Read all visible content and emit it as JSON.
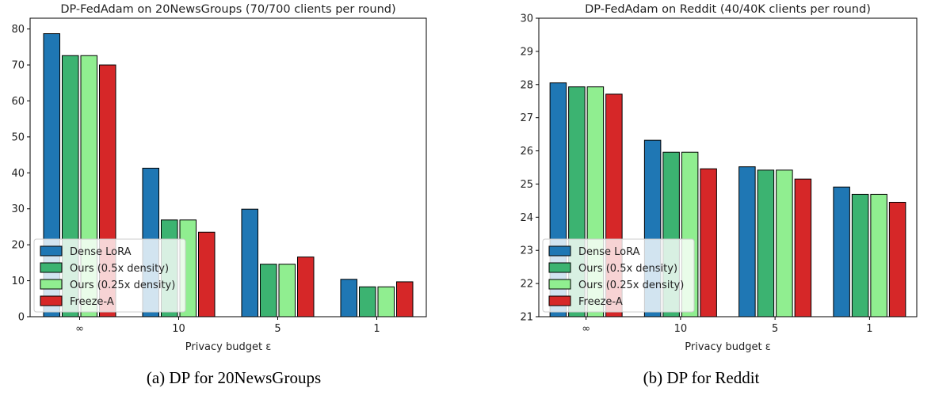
{
  "chart_data": [
    {
      "type": "bar",
      "title": "DP-FedAdam on 20NewsGroups (70/700 clients per round)",
      "xlabel": "Privacy budget ε",
      "ylabel": "",
      "categories": [
        "∞",
        "10",
        "5",
        "1"
      ],
      "ylim": [
        0,
        83
      ],
      "yticks": [
        0,
        10,
        20,
        30,
        40,
        50,
        60,
        70,
        80
      ],
      "legend_position": "lower-left",
      "grid": false,
      "series": [
        {
          "name": "Dense LoRA",
          "color": "#1f77b4",
          "values": [
            78.7,
            41.3,
            29.9,
            10.4
          ]
        },
        {
          "name": "Ours (0.5x density)",
          "color": "#3cb371",
          "values": [
            72.6,
            26.9,
            14.6,
            8.3
          ]
        },
        {
          "name": "Ours (0.25x density)",
          "color": "#90ee90",
          "values": [
            72.6,
            26.9,
            14.6,
            8.3
          ]
        },
        {
          "name": "Freeze-A",
          "color": "#d62728",
          "values": [
            70.0,
            23.5,
            16.6,
            9.7
          ]
        }
      ]
    },
    {
      "type": "bar",
      "title": "DP-FedAdam on Reddit (40/40K clients per round)",
      "xlabel": "Privacy budget ε",
      "ylabel": "",
      "categories": [
        "∞",
        "10",
        "5",
        "1"
      ],
      "ylim": [
        21,
        30
      ],
      "yticks": [
        21,
        22,
        23,
        24,
        25,
        26,
        27,
        28,
        29,
        30
      ],
      "legend_position": "lower-left",
      "grid": false,
      "series": [
        {
          "name": "Dense LoRA",
          "color": "#1f77b4",
          "values": [
            28.05,
            26.32,
            25.52,
            24.91
          ]
        },
        {
          "name": "Ours (0.5x density)",
          "color": "#3cb371",
          "values": [
            27.93,
            25.96,
            25.42,
            24.69
          ]
        },
        {
          "name": "Ours (0.25x density)",
          "color": "#90ee90",
          "values": [
            27.93,
            25.96,
            25.42,
            24.69
          ]
        },
        {
          "name": "Freeze-A",
          "color": "#d62728",
          "values": [
            27.71,
            25.46,
            25.15,
            24.45
          ]
        }
      ]
    }
  ],
  "captions": {
    "a": "(a) DP for 20NewsGroups",
    "b": "(b) DP for Reddit"
  }
}
